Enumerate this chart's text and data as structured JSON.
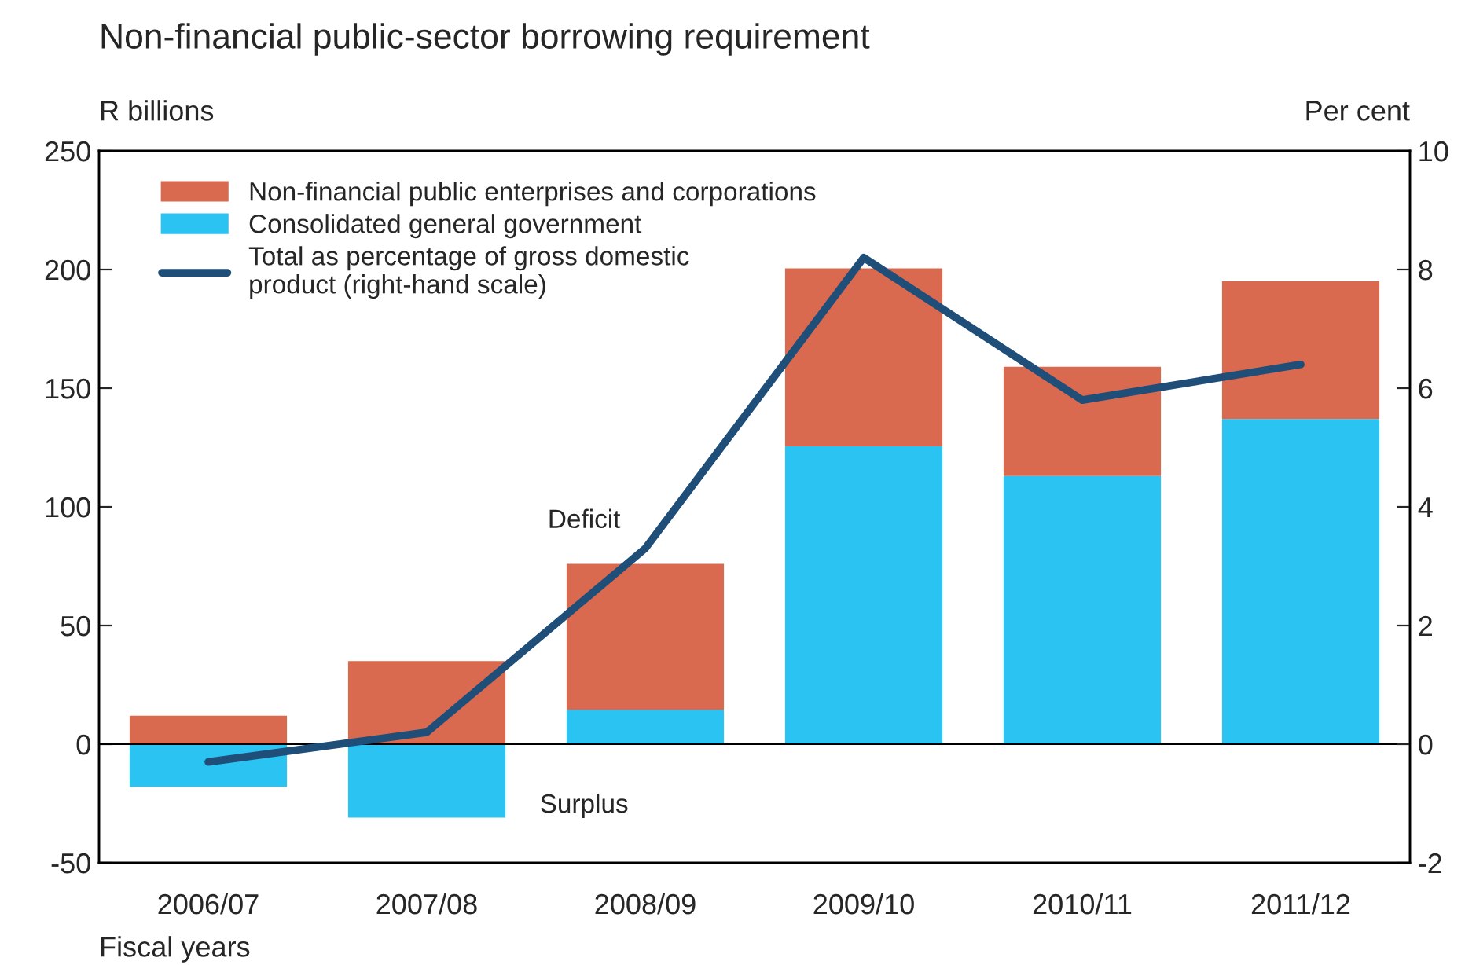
{
  "chart_data": {
    "type": "bar",
    "title": "Non-financial public-sector borrowing requirement",
    "xlabel": "Fiscal years",
    "ylabel": "R billions",
    "y2label": "Per cent",
    "categories": [
      "2006/07",
      "2007/08",
      "2008/09",
      "2009/10",
      "2010/11",
      "2011/12"
    ],
    "stacked": true,
    "series": [
      {
        "name": "Consolidated general government",
        "color": "#2bc3f2",
        "values": [
          -18,
          -31,
          14.5,
          125.5,
          113,
          137
        ]
      },
      {
        "name": "Non-financial public enterprises and corporations",
        "color": "#d9694f",
        "values": [
          12,
          35,
          61.5,
          75,
          46,
          58
        ]
      },
      {
        "name": "Total as percentage of gross domestic\nproduct (right-hand scale)",
        "type": "line",
        "axis": "y2",
        "color": "#1f4e79",
        "values": [
          -0.3,
          0.2,
          3.3,
          8.2,
          5.8,
          6.4
        ]
      }
    ],
    "ylim": [
      -50,
      250
    ],
    "yticks": [
      -50,
      0,
      50,
      100,
      150,
      200,
      250
    ],
    "y2lim": [
      -2,
      10
    ],
    "y2ticks": [
      -2,
      0,
      2,
      4,
      6,
      8,
      10
    ],
    "annotations": [
      "Deficit",
      "Surplus"
    ],
    "ref_lines": [
      {
        "axis": "y",
        "value": 0,
        "color": "#000000"
      }
    ],
    "legend": "top left",
    "marker": "none",
    "line_style": "solid"
  }
}
